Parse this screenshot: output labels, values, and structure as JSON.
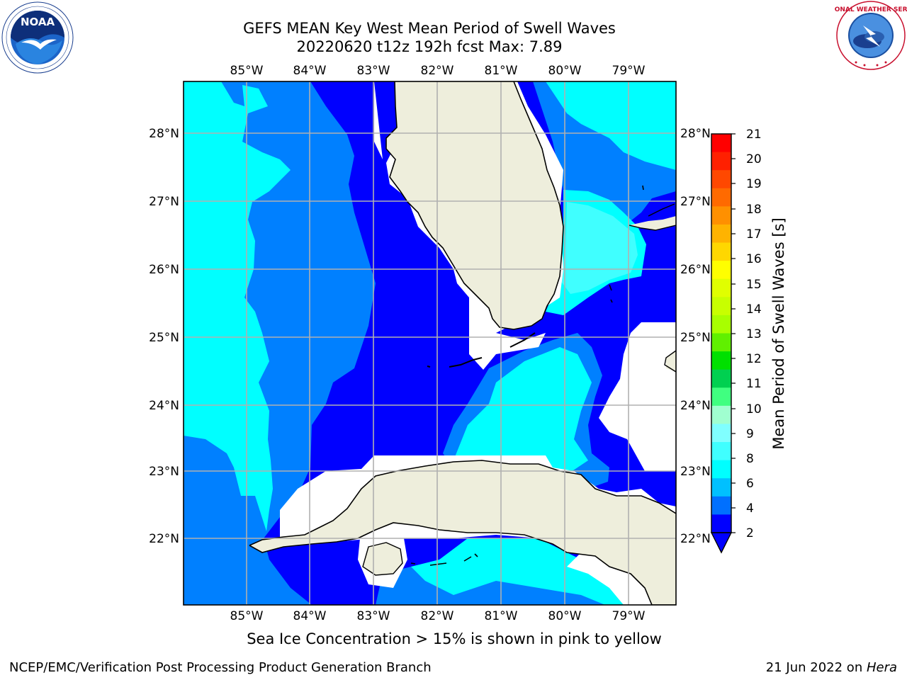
{
  "title": {
    "line1": "GEFS MEAN Key West Mean Period of Swell Waves",
    "line2": "20220620 t12z 192h fcst   Max: 7.89"
  },
  "map": {
    "lon_labels": [
      "85°W",
      "84°W",
      "83°W",
      "82°W",
      "81°W",
      "80°W",
      "79°W"
    ],
    "lat_labels": [
      "28°N",
      "27°N",
      "26°N",
      "25°N",
      "24°N",
      "23°N",
      "22°N"
    ],
    "colors": {
      "land": "#eeeedc",
      "band_2_4": "#0000ff",
      "band_4_6": "#0080ff",
      "band_6_8": "#00ffff",
      "band_8_9": "#40ffff",
      "no_data": "#ffffff",
      "grid": "#b0b0b0"
    }
  },
  "colorbar": {
    "label": "Mean Period of Swell Waves [s]",
    "ticks": [
      "21",
      "20",
      "19",
      "18",
      "17",
      "16",
      "15",
      "14",
      "13",
      "12",
      "11",
      "10",
      "9",
      "8",
      "6",
      "4",
      "2"
    ],
    "colors": [
      "#ff0000",
      "#ff2000",
      "#ff4800",
      "#ff6a00",
      "#ff9000",
      "#ffb300",
      "#ffd700",
      "#ffff00",
      "#e0ff00",
      "#c8ff00",
      "#a8ff00",
      "#60f000",
      "#00e000",
      "#00d050",
      "#40ff80",
      "#a0ffd0",
      "#80ffff",
      "#40ffff",
      "#00ffff",
      "#00c0ff",
      "#0070ff",
      "#0000ff"
    ]
  },
  "subtitle": "Sea Ice Concentration > 15% is shown in pink to yellow",
  "footer": {
    "left": "NCEP/EMC/Verification Post Processing Product Generation Branch",
    "right_date": "21 Jun 2022 on ",
    "right_host": "Hera"
  },
  "logos": {
    "noaa_text": "NOAA",
    "nws_text": "NATIONAL WEATHER SERVICE"
  }
}
